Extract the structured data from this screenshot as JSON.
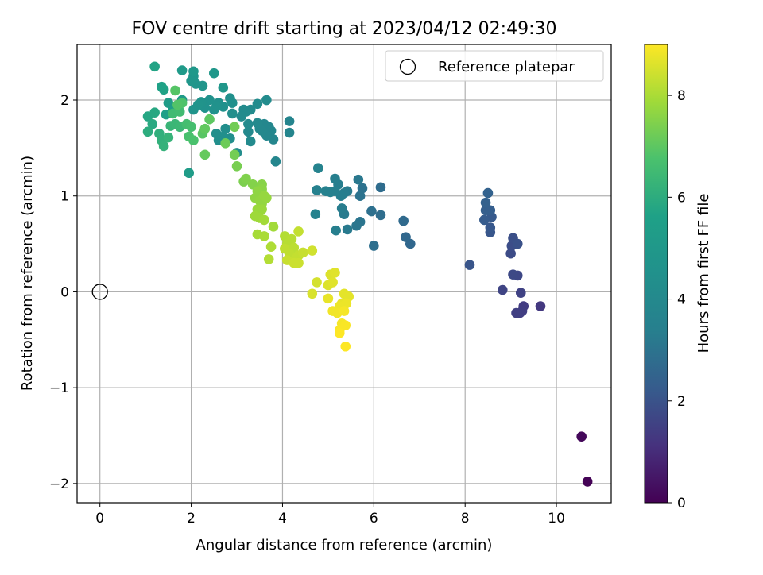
{
  "chart_data": {
    "type": "scatter",
    "title": "FOV centre drift starting at 2023/04/12 02:49:30",
    "xlabel": "Angular distance from reference (arcmin)",
    "ylabel": "Rotation from reference (arcmin)",
    "xlim": [
      -0.5,
      11.2
    ],
    "ylim": [
      -2.2,
      2.58
    ],
    "xticks": [
      0,
      2,
      4,
      6,
      8,
      10
    ],
    "yticks": [
      -2,
      -1,
      0,
      1,
      2
    ],
    "grid": true,
    "legend": {
      "position": "top-right",
      "entries": [
        "Reference platepar"
      ]
    },
    "reference_point": {
      "x": 0,
      "y": 0,
      "label": "Reference platepar"
    },
    "colorbar": {
      "label": "Hours from first FF file",
      "min": 0,
      "max": 9,
      "ticks": [
        0,
        2,
        4,
        6,
        8
      ],
      "colormap": "viridis"
    },
    "series": [
      {
        "points": [
          [
            10.68,
            -1.98,
            0.05
          ],
          [
            10.55,
            -1.51,
            0.15
          ],
          [
            9.65,
            -0.15,
            1.3
          ],
          [
            9.28,
            -0.15,
            1.4
          ],
          [
            9.25,
            -0.2,
            1.45
          ],
          [
            9.2,
            -0.22,
            1.45
          ],
          [
            9.12,
            -0.22,
            1.5
          ],
          [
            9.22,
            -0.01,
            1.55
          ],
          [
            8.82,
            0.02,
            1.6
          ],
          [
            9.15,
            0.17,
            1.7
          ],
          [
            9.05,
            0.18,
            1.75
          ],
          [
            9.0,
            0.4,
            1.8
          ],
          [
            9.02,
            0.48,
            1.85
          ],
          [
            9.05,
            0.56,
            1.9
          ],
          [
            9.15,
            0.5,
            1.95
          ],
          [
            8.1,
            0.28,
            2.05
          ],
          [
            8.55,
            0.62,
            2.1
          ],
          [
            8.55,
            0.67,
            2.15
          ],
          [
            8.58,
            0.78,
            2.2
          ],
          [
            8.42,
            0.75,
            2.25
          ],
          [
            8.55,
            0.85,
            2.3
          ],
          [
            8.45,
            0.85,
            2.35
          ],
          [
            8.45,
            0.93,
            2.4
          ],
          [
            8.5,
            1.03,
            2.45
          ],
          [
            6.8,
            0.5,
            2.6
          ],
          [
            6.7,
            0.57,
            2.65
          ],
          [
            6.65,
            0.74,
            2.7
          ],
          [
            6.15,
            1.09,
            2.75
          ],
          [
            6.15,
            0.8,
            2.8
          ],
          [
            6.0,
            0.48,
            2.85
          ],
          [
            5.95,
            0.84,
            2.9
          ],
          [
            5.75,
            1.08,
            2.95
          ],
          [
            5.7,
            1.0,
            3.0
          ],
          [
            5.7,
            0.73,
            3.05
          ],
          [
            5.62,
            0.69,
            3.1
          ],
          [
            5.66,
            1.17,
            3.15
          ],
          [
            5.42,
            0.65,
            3.2
          ],
          [
            5.42,
            1.05,
            3.25
          ],
          [
            5.35,
            0.81,
            3.25
          ],
          [
            5.3,
            0.87,
            3.3
          ],
          [
            5.35,
            1.03,
            3.3
          ],
          [
            5.28,
            1.0,
            3.35
          ],
          [
            5.22,
            1.12,
            3.35
          ],
          [
            5.15,
            1.18,
            3.4
          ],
          [
            5.17,
            0.64,
            3.4
          ],
          [
            5.15,
            1.05,
            3.45
          ],
          [
            5.05,
            1.04,
            3.45
          ],
          [
            4.95,
            1.05,
            3.5
          ],
          [
            4.75,
            1.06,
            3.5
          ],
          [
            4.72,
            0.81,
            3.55
          ],
          [
            4.78,
            1.29,
            3.6
          ],
          [
            4.15,
            1.78,
            3.7
          ],
          [
            4.15,
            1.66,
            3.75
          ],
          [
            3.85,
            1.36,
            3.8
          ],
          [
            3.8,
            1.59,
            3.8
          ],
          [
            3.75,
            1.68,
            3.85
          ],
          [
            3.7,
            1.72,
            3.85
          ],
          [
            3.65,
            1.63,
            3.9
          ],
          [
            3.6,
            1.75,
            3.9
          ],
          [
            3.55,
            1.68,
            3.95
          ],
          [
            3.5,
            1.7,
            3.95
          ],
          [
            3.45,
            1.76,
            4.0
          ],
          [
            3.25,
            1.67,
            4.0
          ],
          [
            3.3,
            1.57,
            4.05
          ],
          [
            3.25,
            1.75,
            4.05
          ],
          [
            3.2,
            1.88,
            4.1
          ],
          [
            3.15,
            1.9,
            4.1
          ],
          [
            3.1,
            1.83,
            4.15
          ],
          [
            3.3,
            1.9,
            4.15
          ],
          [
            3.45,
            1.96,
            4.2
          ],
          [
            3.65,
            2.0,
            4.2
          ],
          [
            3.0,
            1.45,
            4.25
          ],
          [
            2.85,
            1.6,
            4.3
          ],
          [
            2.75,
            1.7,
            4.3
          ],
          [
            2.7,
            1.62,
            4.35
          ],
          [
            2.6,
            1.58,
            4.35
          ],
          [
            2.55,
            1.65,
            4.4
          ],
          [
            2.9,
            1.86,
            4.4
          ],
          [
            2.9,
            1.97,
            4.45
          ],
          [
            2.85,
            2.02,
            4.45
          ],
          [
            2.7,
            1.93,
            4.5
          ],
          [
            2.6,
            1.97,
            4.5
          ],
          [
            2.55,
            1.93,
            4.55
          ],
          [
            2.5,
            1.9,
            4.55
          ],
          [
            2.4,
            2.0,
            4.6
          ],
          [
            2.3,
            1.92,
            4.6
          ],
          [
            2.22,
            1.98,
            4.65
          ],
          [
            2.15,
            1.95,
            4.7
          ],
          [
            2.05,
            1.9,
            4.7
          ],
          [
            2.25,
            2.15,
            4.75
          ],
          [
            2.1,
            2.17,
            4.8
          ],
          [
            2.05,
            2.25,
            4.8
          ],
          [
            2.0,
            2.2,
            4.85
          ],
          [
            2.5,
            2.28,
            4.9
          ],
          [
            2.7,
            2.13,
            4.95
          ],
          [
            2.05,
            2.3,
            5.0
          ],
          [
            1.8,
            2.31,
            5.1
          ],
          [
            1.8,
            2.0,
            5.2
          ],
          [
            1.5,
            1.97,
            5.3
          ],
          [
            1.95,
            1.24,
            5.3
          ],
          [
            1.6,
            1.9,
            5.4
          ],
          [
            1.45,
            1.85,
            5.5
          ],
          [
            1.35,
            2.14,
            5.6
          ],
          [
            1.4,
            2.11,
            5.65
          ],
          [
            1.2,
            2.35,
            5.7
          ],
          [
            1.05,
            1.83,
            5.8
          ],
          [
            1.2,
            1.87,
            5.85
          ],
          [
            1.15,
            1.75,
            5.9
          ],
          [
            1.05,
            1.67,
            6.0
          ],
          [
            1.3,
            1.65,
            6.1
          ],
          [
            1.35,
            1.58,
            6.15
          ],
          [
            1.4,
            1.52,
            6.2
          ],
          [
            1.5,
            1.61,
            6.25
          ],
          [
            1.55,
            1.73,
            6.3
          ],
          [
            1.65,
            1.75,
            6.35
          ],
          [
            1.75,
            1.72,
            6.4
          ],
          [
            1.6,
            1.86,
            6.5
          ],
          [
            1.75,
            1.88,
            6.55
          ],
          [
            1.9,
            1.75,
            6.6
          ],
          [
            2.0,
            1.72,
            6.65
          ],
          [
            1.95,
            1.62,
            6.7
          ],
          [
            2.05,
            1.58,
            6.75
          ],
          [
            1.8,
            1.97,
            6.8
          ],
          [
            1.7,
            1.95,
            6.85
          ],
          [
            1.65,
            2.1,
            6.9
          ],
          [
            2.25,
            1.65,
            6.95
          ],
          [
            2.4,
            1.8,
            7.0
          ],
          [
            2.3,
            1.7,
            7.05
          ],
          [
            2.3,
            1.43,
            7.1
          ],
          [
            2.75,
            1.55,
            7.2
          ],
          [
            2.95,
            1.72,
            7.25
          ],
          [
            2.95,
            1.43,
            7.3
          ],
          [
            3.0,
            1.31,
            7.35
          ],
          [
            3.15,
            1.15,
            7.4
          ],
          [
            3.2,
            1.18,
            7.45
          ],
          [
            3.35,
            1.12,
            7.5
          ],
          [
            3.55,
            1.12,
            7.55
          ],
          [
            3.55,
            1.07,
            7.6
          ],
          [
            3.4,
            0.98,
            7.65
          ],
          [
            3.45,
            1.05,
            7.65
          ],
          [
            3.5,
            0.95,
            7.7
          ],
          [
            3.55,
            0.92,
            7.7
          ],
          [
            3.6,
            1.0,
            7.75
          ],
          [
            3.65,
            0.98,
            7.75
          ],
          [
            3.45,
            0.86,
            7.8
          ],
          [
            3.55,
            0.86,
            7.8
          ],
          [
            3.4,
            0.79,
            7.85
          ],
          [
            3.5,
            0.77,
            7.85
          ],
          [
            3.6,
            0.75,
            7.9
          ],
          [
            3.8,
            0.68,
            7.9
          ],
          [
            3.45,
            0.6,
            7.95
          ],
          [
            3.6,
            0.58,
            8.0
          ],
          [
            3.75,
            0.47,
            8.05
          ],
          [
            3.7,
            0.34,
            8.1
          ],
          [
            4.05,
            0.58,
            8.1
          ],
          [
            4.1,
            0.5,
            8.15
          ],
          [
            4.2,
            0.55,
            8.15
          ],
          [
            4.25,
            0.46,
            8.2
          ],
          [
            4.05,
            0.45,
            8.25
          ],
          [
            4.15,
            0.4,
            8.25
          ],
          [
            4.3,
            0.35,
            8.3
          ],
          [
            4.35,
            0.38,
            8.3
          ],
          [
            4.35,
            0.63,
            8.3
          ],
          [
            4.45,
            0.41,
            8.35
          ],
          [
            4.1,
            0.33,
            8.35
          ],
          [
            4.25,
            0.3,
            8.4
          ],
          [
            4.35,
            0.3,
            8.4
          ],
          [
            4.65,
            0.43,
            8.45
          ],
          [
            4.75,
            0.1,
            8.5
          ],
          [
            4.65,
            -0.02,
            8.55
          ],
          [
            5.0,
            0.07,
            8.6
          ],
          [
            5.05,
            0.18,
            8.6
          ],
          [
            5.15,
            0.2,
            8.65
          ],
          [
            5.1,
            0.1,
            8.65
          ],
          [
            5.35,
            -0.02,
            8.7
          ],
          [
            5.45,
            -0.05,
            8.7
          ],
          [
            5.0,
            -0.07,
            8.75
          ],
          [
            5.3,
            -0.12,
            8.75
          ],
          [
            5.4,
            -0.12,
            8.8
          ],
          [
            5.25,
            -0.15,
            8.8
          ],
          [
            5.1,
            -0.2,
            8.85
          ],
          [
            5.2,
            -0.22,
            8.85
          ],
          [
            5.35,
            -0.2,
            8.9
          ],
          [
            5.3,
            -0.33,
            8.9
          ],
          [
            5.25,
            -0.4,
            8.95
          ],
          [
            5.38,
            -0.35,
            8.95
          ],
          [
            5.25,
            -0.43,
            9.0
          ],
          [
            5.38,
            -0.57,
            9.0
          ]
        ]
      }
    ]
  }
}
